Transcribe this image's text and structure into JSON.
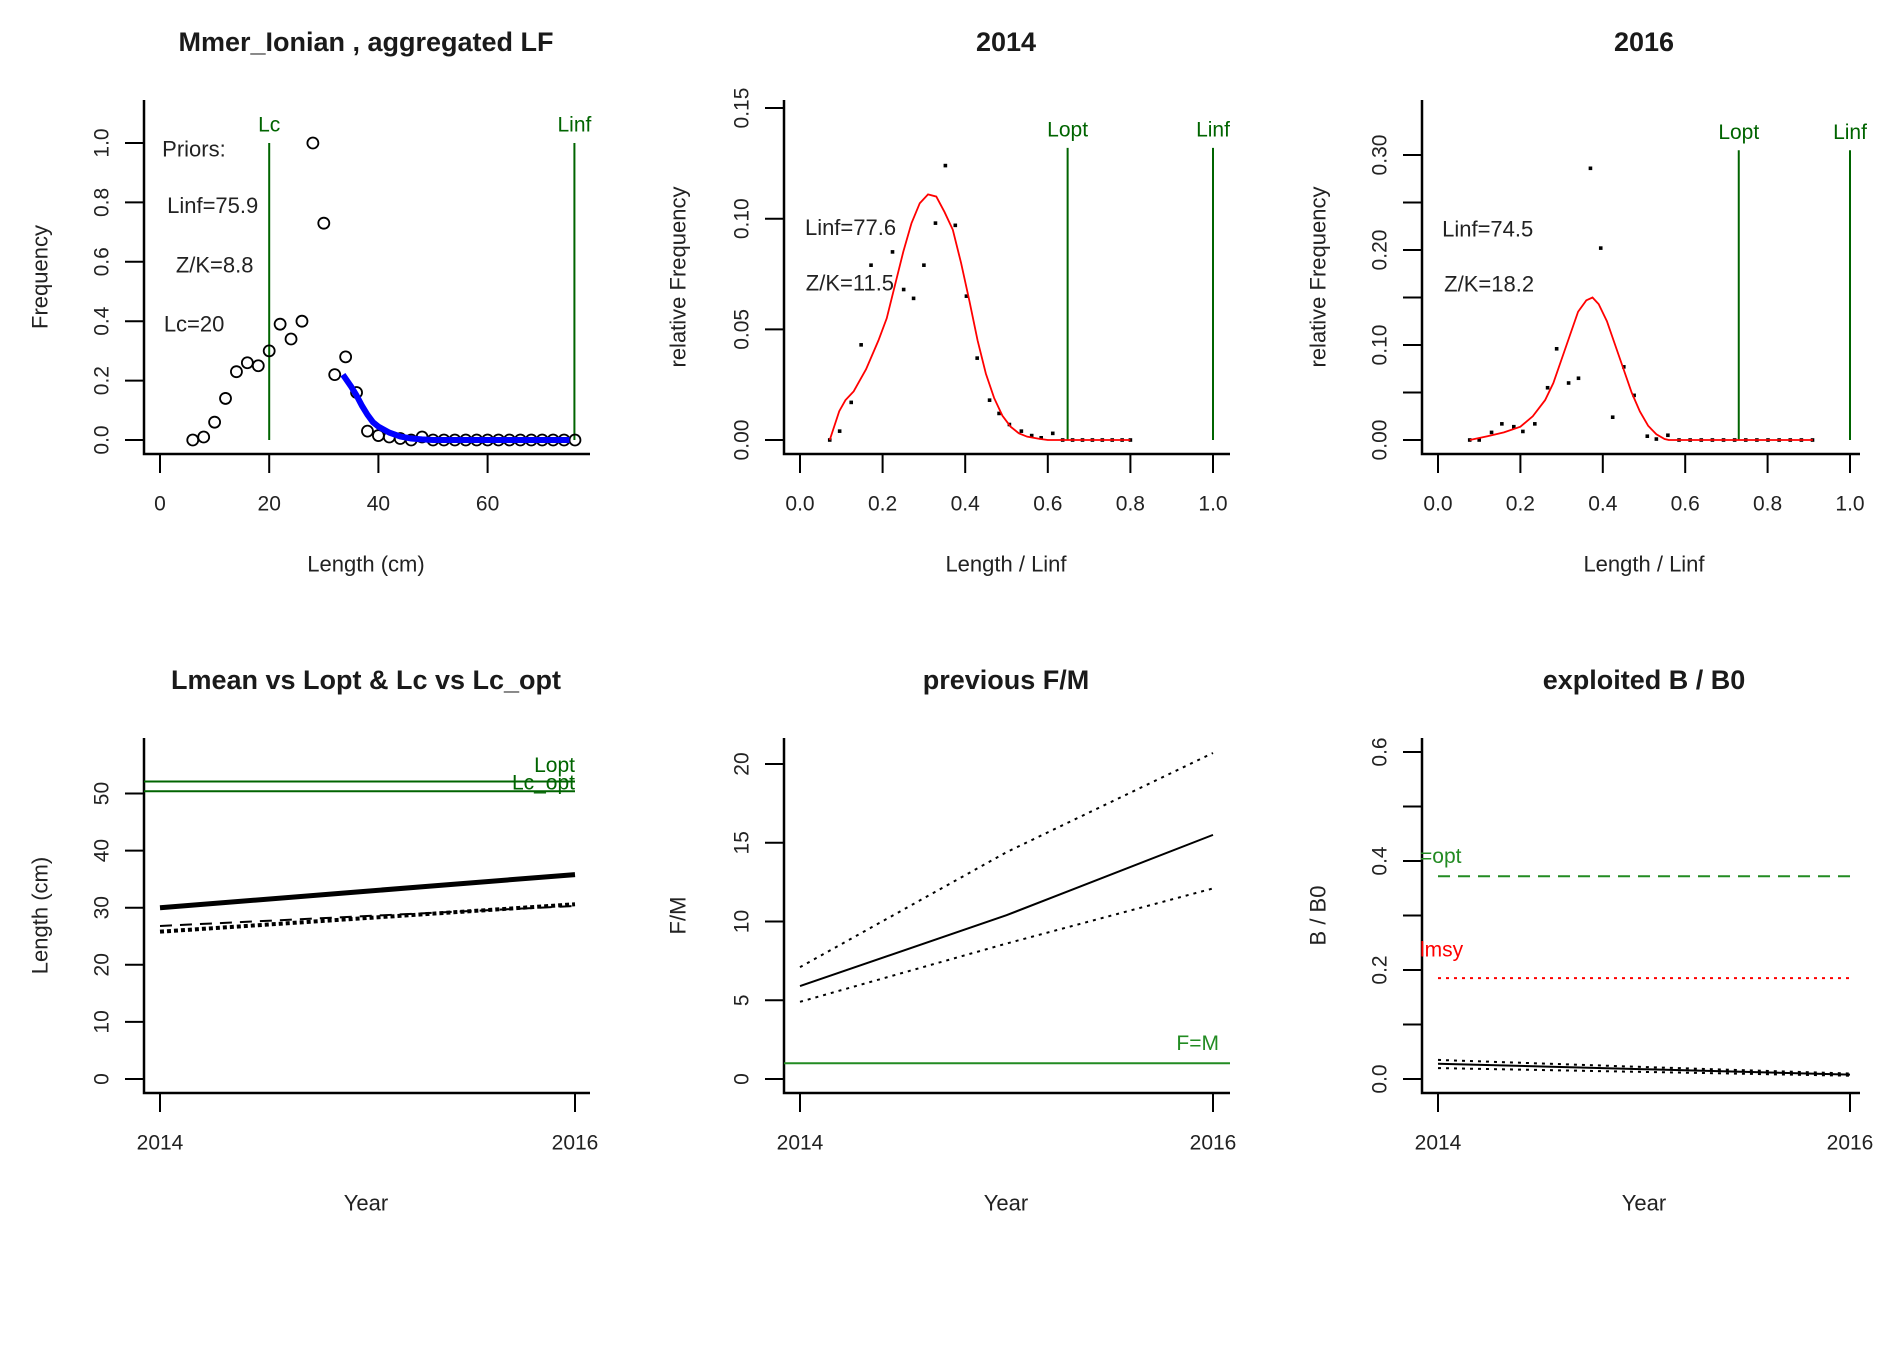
{
  "chart_data": [
    {
      "type": "scatter",
      "title": "Mmer_Ionian , aggregated LF",
      "xlabel": "Length (cm)",
      "ylabel": "Frequency",
      "x_ticks": [
        0,
        20,
        40,
        60
      ],
      "x_tick_labels": [
        "0",
        "20",
        "40",
        "60"
      ],
      "y_ticks": [
        0,
        0.2,
        0.4,
        0.6,
        0.8,
        1.0
      ],
      "y_tick_labels": [
        "0.0",
        "0.2",
        "0.4",
        "0.6",
        "0.8",
        "1.0"
      ],
      "series": [
        {
          "kind": "points",
          "marker": "circle",
          "color": "#000000",
          "x": [
            6,
            8,
            10,
            12,
            14,
            16,
            18,
            20,
            22,
            24,
            26,
            28,
            30,
            32,
            34,
            36,
            38,
            40,
            42,
            44,
            46,
            48,
            50,
            52,
            54,
            56,
            58,
            60,
            62,
            64,
            66,
            68,
            70,
            72,
            74,
            76
          ],
          "y": [
            0,
            0.01,
            0.06,
            0.14,
            0.23,
            0.26,
            0.25,
            0.3,
            0.39,
            0.34,
            0.4,
            1.0,
            0.73,
            0.22,
            0.28,
            0.16,
            0.03,
            0.015,
            0.01,
            0.005,
            0,
            0.01,
            0,
            0,
            0,
            0,
            0,
            0,
            0,
            0,
            0,
            0,
            0,
            0,
            0,
            0
          ]
        },
        {
          "kind": "fit",
          "style": "solid",
          "color": "#0000ff",
          "x": [
            33.5,
            35,
            36,
            37,
            38,
            39,
            40,
            42,
            44,
            46,
            48,
            50,
            75
          ],
          "y": [
            0.22,
            0.18,
            0.15,
            0.115,
            0.085,
            0.06,
            0.045,
            0.025,
            0.012,
            0.005,
            0.002,
            0,
            0
          ]
        }
      ],
      "ref_lines": [
        {
          "orientation": "vertical",
          "value": 20,
          "to": 1.0,
          "label": "Lc",
          "color": "#006400"
        },
        {
          "orientation": "vertical",
          "value": 75.9,
          "to": 1.0,
          "label": "Linf",
          "color": "#006400"
        }
      ],
      "annotations": [
        {
          "text": "Priors:",
          "x": 0.4,
          "y": 0.98
        },
        {
          "text": "Linf=75.9",
          "x": 1.3,
          "y": 0.79
        },
        {
          "text": "Z/K=8.8",
          "x": 2.9,
          "y": 0.59
        },
        {
          "text": "Lc=20",
          "x": 0.7,
          "y": 0.39
        }
      ]
    },
    {
      "type": "scatter",
      "title": "2014",
      "xlabel": "Length / Linf",
      "ylabel": "relative Frequency",
      "x_ticks": [
        0,
        0.2,
        0.4,
        0.6,
        0.8,
        1.0
      ],
      "x_tick_labels": [
        "0.0",
        "0.2",
        "0.4",
        "0.6",
        "0.8",
        "1.0"
      ],
      "y_ticks": [
        0,
        0.05,
        0.1,
        0.15
      ],
      "y_tick_labels": [
        "0.00",
        "0.05",
        "0.10",
        "0.15"
      ],
      "series": [
        {
          "kind": "points",
          "marker": "dot",
          "color": "#000000",
          "x": [
            0.072,
            0.096,
            0.124,
            0.148,
            0.172,
            0.224,
            0.251,
            0.275,
            0.3,
            0.328,
            0.352,
            0.376,
            0.403,
            0.429,
            0.459,
            0.482,
            0.507,
            0.536,
            0.561,
            0.584,
            0.612,
            0.636,
            0.66,
            0.684,
            0.708,
            0.732,
            0.756,
            0.78,
            0.8
          ],
          "y": [
            0,
            0.004,
            0.017,
            0.043,
            0.079,
            0.085,
            0.068,
            0.064,
            0.079,
            0.098,
            0.124,
            0.097,
            0.065,
            0.037,
            0.018,
            0.012,
            0.007,
            0.004,
            0.002,
            0.001,
            0.003,
            0,
            0,
            0,
            0,
            0,
            0,
            0,
            0
          ]
        },
        {
          "kind": "fit",
          "style": "solid",
          "color": "#ff0000",
          "x": [
            0.072,
            0.095,
            0.11,
            0.13,
            0.16,
            0.19,
            0.21,
            0.23,
            0.25,
            0.27,
            0.29,
            0.31,
            0.33,
            0.35,
            0.37,
            0.39,
            0.41,
            0.43,
            0.45,
            0.47,
            0.49,
            0.51,
            0.53,
            0.55,
            0.58,
            0.6,
            0.8
          ],
          "y": [
            0,
            0.013,
            0.018,
            0.022,
            0.032,
            0.045,
            0.055,
            0.07,
            0.085,
            0.098,
            0.107,
            0.111,
            0.11,
            0.103,
            0.095,
            0.08,
            0.063,
            0.045,
            0.03,
            0.019,
            0.011,
            0.006,
            0.003,
            0.0015,
            0.0005,
            0,
            0
          ]
        }
      ],
      "ref_lines": [
        {
          "orientation": "vertical",
          "value": 0.648,
          "to": 0.132,
          "label": "Lopt",
          "color": "#006400"
        },
        {
          "orientation": "vertical",
          "value": 1.0,
          "to": 0.132,
          "label": "Linf",
          "color": "#006400"
        }
      ],
      "annotations": [
        {
          "text": "Linf=77.6",
          "x": 0.012,
          "y": 0.096
        },
        {
          "text": "Z/K=11.5",
          "x": 0.014,
          "y": 0.071
        }
      ]
    },
    {
      "type": "scatter",
      "title": "2016",
      "xlabel": "Length / Linf",
      "ylabel": "relative Frequency",
      "x_ticks": [
        0,
        0.2,
        0.4,
        0.6,
        0.8,
        1.0
      ],
      "x_tick_labels": [
        "0.0",
        "0.2",
        "0.4",
        "0.6",
        "0.8",
        "1.0"
      ],
      "y_ticks": [
        0,
        0.05,
        0.1,
        0.15,
        0.2,
        0.25,
        0.3
      ],
      "y_tick_labels": [
        "0.00",
        "",
        "0.10",
        "",
        "0.20",
        "",
        "0.30"
      ],
      "series": [
        {
          "kind": "points",
          "marker": "dot",
          "color": "#000000",
          "x": [
            0.077,
            0.1,
            0.13,
            0.155,
            0.184,
            0.206,
            0.235,
            0.266,
            0.288,
            0.317,
            0.341,
            0.37,
            0.395,
            0.424,
            0.451,
            0.476,
            0.508,
            0.53,
            0.558,
            0.585,
            0.612,
            0.639,
            0.666,
            0.693,
            0.72,
            0.747,
            0.774,
            0.801,
            0.828,
            0.855,
            0.882,
            0.909
          ],
          "y": [
            0,
            0,
            0.008,
            0.017,
            0.014,
            0.009,
            0.017,
            0.055,
            0.096,
            0.06,
            0.065,
            0.286,
            0.202,
            0.024,
            0.077,
            0.047,
            0.004,
            0.001,
            0.005,
            0,
            0,
            0,
            0,
            0,
            0,
            0,
            0,
            0,
            0,
            0,
            0,
            0
          ]
        },
        {
          "kind": "fit",
          "style": "solid",
          "color": "#ff0000",
          "x": [
            0.077,
            0.12,
            0.16,
            0.2,
            0.23,
            0.26,
            0.28,
            0.3,
            0.32,
            0.34,
            0.36,
            0.375,
            0.39,
            0.41,
            0.43,
            0.45,
            0.47,
            0.49,
            0.51,
            0.53,
            0.55,
            0.56,
            0.91
          ],
          "y": [
            0,
            0.004,
            0.008,
            0.014,
            0.025,
            0.042,
            0.06,
            0.085,
            0.11,
            0.135,
            0.147,
            0.15,
            0.143,
            0.125,
            0.1,
            0.075,
            0.05,
            0.03,
            0.015,
            0.006,
            0.001,
            0,
            0
          ]
        }
      ],
      "ref_lines": [
        {
          "orientation": "vertical",
          "value": 0.73,
          "to": 0.305,
          "label": "Lopt",
          "color": "#006400"
        },
        {
          "orientation": "vertical",
          "value": 1.0,
          "to": 0.305,
          "label": "Linf",
          "color": "#006400"
        }
      ],
      "annotations": [
        {
          "text": "Linf=74.5",
          "x": 0.01,
          "y": 0.222
        },
        {
          "text": "Z/K=18.2",
          "x": 0.015,
          "y": 0.164
        }
      ]
    },
    {
      "type": "line",
      "title": "Lmean vs Lopt & Lc vs Lc_opt",
      "xlabel": "Year",
      "ylabel": "Length (cm)",
      "x_ticks": [
        2014,
        2016
      ],
      "x_tick_labels": [
        "2014",
        "2016"
      ],
      "y_ticks": [
        0,
        10,
        20,
        30,
        40,
        50
      ],
      "y_tick_labels": [
        "0",
        "10",
        "20",
        "30",
        "40",
        "50"
      ],
      "series": [
        {
          "kind": "line",
          "style": "thick",
          "color": "#000000",
          "x": [
            2014,
            2016
          ],
          "y": [
            30.0,
            35.8
          ]
        },
        {
          "kind": "line",
          "style": "dotted-points",
          "color": "#000000",
          "x": [
            2014,
            2016
          ],
          "y": [
            25.8,
            30.6
          ]
        },
        {
          "kind": "line",
          "style": "dashed",
          "color": "#000000",
          "x": [
            2014,
            2016
          ],
          "y": [
            26.8,
            30.3
          ]
        }
      ],
      "ref_lines": [
        {
          "orientation": "horizontal",
          "value": 52.1,
          "label": "Lopt",
          "color": "#006400"
        },
        {
          "orientation": "horizontal",
          "value": 50.4,
          "label": "Lc_opt",
          "color": "#006400"
        }
      ],
      "annotations": []
    },
    {
      "type": "line",
      "title": "previous F/M",
      "xlabel": "Year",
      "ylabel": "F/M",
      "x_ticks": [
        2014,
        2016
      ],
      "x_tick_labels": [
        "2014",
        "2016"
      ],
      "y_ticks": [
        0,
        5,
        10,
        15,
        20
      ],
      "y_tick_labels": [
        "0",
        "5",
        "10",
        "15",
        "20"
      ],
      "series": [
        {
          "kind": "line",
          "style": "dotted",
          "color": "#000000",
          "x": [
            2014,
            2015,
            2016
          ],
          "y": [
            7.1,
            14.4,
            20.7
          ]
        },
        {
          "kind": "line",
          "style": "solid",
          "color": "#000000",
          "x": [
            2014,
            2015,
            2016
          ],
          "y": [
            5.9,
            10.4,
            15.5
          ]
        },
        {
          "kind": "line",
          "style": "dotted",
          "color": "#000000",
          "x": [
            2014,
            2015,
            2016
          ],
          "y": [
            4.9,
            8.6,
            12.1
          ]
        }
      ],
      "ref_lines": [
        {
          "orientation": "horizontal",
          "value": 1.0,
          "label": "F=M",
          "color": "#228b22"
        }
      ],
      "annotations": []
    },
    {
      "type": "line",
      "title": "exploited B / B0",
      "xlabel": "Year",
      "ylabel": "B / B0",
      "x_ticks": [
        2014,
        2016
      ],
      "x_tick_labels": [
        "2014",
        "2016"
      ],
      "y_ticks": [
        0,
        0.1,
        0.2,
        0.3,
        0.4,
        0.5,
        0.6
      ],
      "y_tick_labels": [
        "0.0",
        "",
        "0.2",
        "",
        "0.4",
        "",
        "0.6"
      ],
      "series": [
        {
          "kind": "line",
          "style": "dotted",
          "color": "#000000",
          "x": [
            2014,
            2015,
            2016
          ],
          "y": [
            0.035,
            0.022,
            0.01
          ]
        },
        {
          "kind": "line",
          "style": "solid",
          "color": "#000000",
          "x": [
            2014,
            2015,
            2016
          ],
          "y": [
            0.028,
            0.018,
            0.008
          ]
        },
        {
          "kind": "line",
          "style": "dotted",
          "color": "#000000",
          "x": [
            2014,
            2015,
            2016
          ],
          "y": [
            0.02,
            0.013,
            0.006
          ]
        }
      ],
      "ref_lines": [
        {
          "orientation": "horizontal",
          "value": 0.372,
          "label": "=opt",
          "color": "#228b22",
          "style": "dashed"
        },
        {
          "orientation": "horizontal",
          "value": 0.185,
          "label": "lmsy",
          "color": "#ff0000",
          "style": "dotted"
        }
      ],
      "annotations": []
    }
  ]
}
